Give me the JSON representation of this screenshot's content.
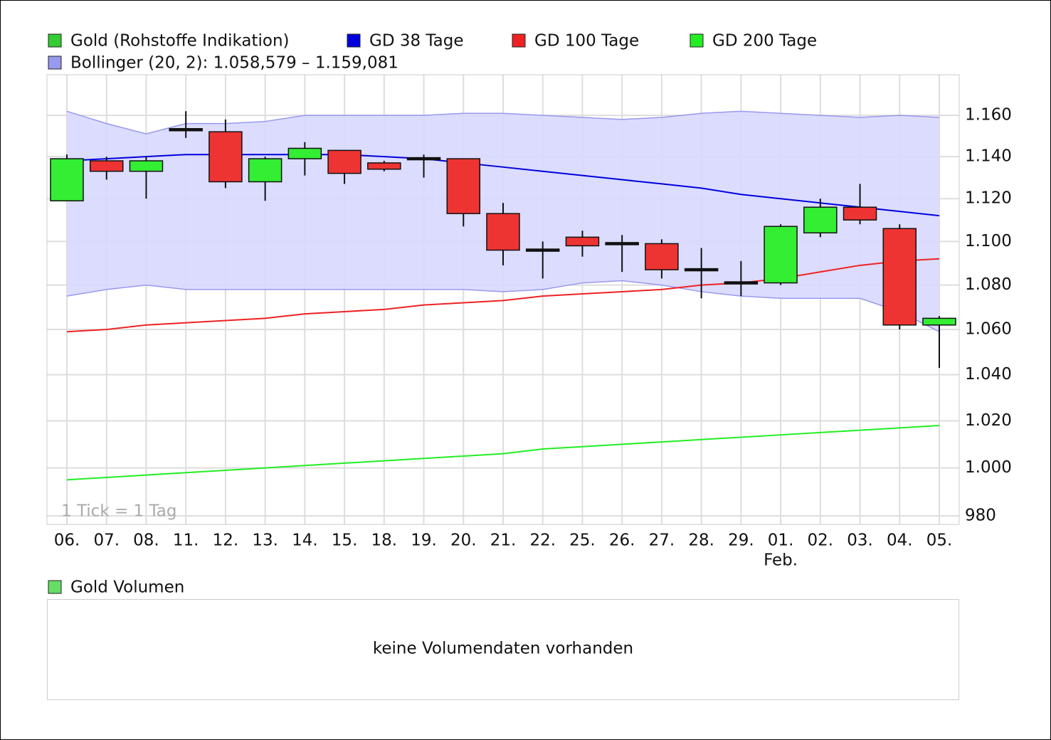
{
  "chart_data": {
    "type": "candlestick",
    "categories": [
      "06.",
      "07.",
      "08.",
      "11.",
      "12.",
      "13.",
      "14.",
      "15.",
      "18.",
      "19.",
      "20.",
      "21.",
      "22.",
      "25.",
      "26.",
      "27.",
      "28.",
      "29.",
      "01.",
      "02.",
      "03.",
      "04.",
      "05."
    ],
    "x_sublabels": [
      null,
      null,
      null,
      null,
      null,
      null,
      null,
      null,
      null,
      null,
      null,
      null,
      null,
      null,
      null,
      null,
      null,
      null,
      "Feb.",
      null,
      null,
      null,
      null
    ],
    "candles": {
      "name": "Gold (Rohstoffe Indikation)",
      "color": "#33cc33",
      "up_color": "#33ee33",
      "down_color": "#ee3333",
      "open": [
        1119,
        1138,
        1133,
        1153,
        1152,
        1128,
        1139,
        1143,
        1137,
        1139,
        1139,
        1113,
        1096,
        1102,
        1099,
        1099,
        1087,
        1081,
        1081,
        1104,
        1116,
        1106,
        1062
      ],
      "high": [
        1141,
        1140,
        1140,
        1162,
        1158,
        1140,
        1147,
        1143,
        1138,
        1141,
        1139,
        1118,
        1100,
        1105,
        1103,
        1101,
        1097,
        1091,
        1108,
        1120,
        1127,
        1108,
        1066
      ],
      "low": [
        1119,
        1129,
        1120,
        1149,
        1125,
        1119,
        1131,
        1127,
        1133,
        1130,
        1107,
        1089,
        1083,
        1093,
        1086,
        1083,
        1074,
        1075,
        1080,
        1102,
        1108,
        1060,
        1043
      ],
      "close": [
        1139,
        1133,
        1138,
        1153,
        1128,
        1139,
        1144,
        1132,
        1134,
        1139,
        1113,
        1096,
        1096,
        1098,
        1099,
        1087,
        1087,
        1081,
        1107,
        1116,
        1110,
        1062,
        1065
      ]
    },
    "series": [
      {
        "name": "GD 38 Tage",
        "color": "#0000dd",
        "values": [
          1138,
          1139,
          1140,
          1141,
          1141,
          1141,
          1141,
          1141,
          1140,
          1139,
          1137,
          1135,
          1133,
          1131,
          1129,
          1127,
          1125,
          1122,
          1120,
          1118,
          1116,
          1114,
          1112
        ]
      },
      {
        "name": "GD 100 Tage",
        "color": "#ee2222",
        "values": [
          1059,
          1060,
          1062,
          1063,
          1064,
          1065,
          1067,
          1068,
          1069,
          1071,
          1072,
          1073,
          1075,
          1076,
          1077,
          1078,
          1080,
          1081,
          1083,
          1086,
          1089,
          1091,
          1092
        ]
      },
      {
        "name": "GD 200 Tage",
        "color": "#22ee22",
        "values": [
          995,
          996,
          997,
          998,
          999,
          1000,
          1001,
          1002,
          1003,
          1004,
          1005,
          1006,
          1008,
          1009,
          1010,
          1011,
          1012,
          1013,
          1014,
          1015,
          1016,
          1017,
          1018
        ]
      }
    ],
    "bands": {
      "name": "Bollinger (20, 2): 1.058,579 – 1.159,081",
      "color": "#9999ee",
      "fill": "#d8d8ff",
      "upper": [
        1162,
        1156,
        1151,
        1156,
        1156,
        1157,
        1160,
        1160,
        1160,
        1160,
        1161,
        1161,
        1160,
        1159,
        1158,
        1159,
        1161,
        1162,
        1161,
        1160,
        1159,
        1160,
        1159
      ],
      "lower": [
        1075,
        1078,
        1080,
        1078,
        1078,
        1078,
        1078,
        1078,
        1078,
        1078,
        1078,
        1077,
        1078,
        1081,
        1082,
        1080,
        1077,
        1075,
        1074,
        1074,
        1074,
        1068,
        1059
      ]
    },
    "ylim": [
      976.5,
      1180
    ],
    "yticks": [
      980,
      {
        "value": 1000,
        "label": "1.000"
      },
      {
        "value": 1020,
        "label": "1.020"
      },
      {
        "value": 1040,
        "label": "1.040"
      },
      {
        "value": 1060,
        "label": "1.060"
      },
      {
        "value": 1080,
        "label": "1.080"
      },
      {
        "value": 1100,
        "label": "1.100"
      },
      {
        "value": 1120,
        "label": "1.120"
      },
      {
        "value": 1140,
        "label": "1.140"
      },
      {
        "value": 1160,
        "label": "1.160"
      }
    ],
    "log_scale": true,
    "grid": true,
    "note": "1 Tick = 1 Tag"
  },
  "volume_panel": {
    "title": "Gold Volumen",
    "color": "#66dd66",
    "message": "keine Volumendaten vorhanden"
  }
}
